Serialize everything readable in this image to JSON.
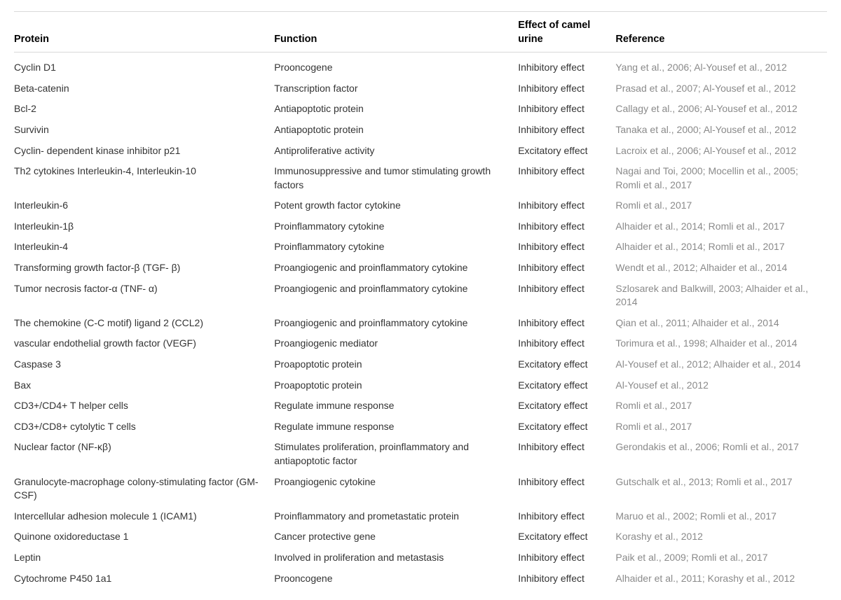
{
  "table": {
    "columns": [
      {
        "key": "protein",
        "label": "Protein"
      },
      {
        "key": "function",
        "label": "Function"
      },
      {
        "key": "effect",
        "label": "Effect of camel urine"
      },
      {
        "key": "reference",
        "label": "Reference"
      }
    ],
    "column_widths_pct": [
      32,
      30,
      12,
      26
    ],
    "header_border_color": "#d9d9d9",
    "text_color": "#333333",
    "reference_color": "#8a8a8a",
    "background_color": "#ffffff",
    "font_size_pt": 11,
    "header_font_size_pt": 11,
    "header_font_weight": "bold",
    "rows": [
      {
        "protein": "Cyclin D1",
        "function": "Prooncogene",
        "effect": "Inhibitory effect",
        "reference": "Yang et al., 2006; Al-Yousef et al., 2012"
      },
      {
        "protein": "Beta-catenin",
        "function": "Transcription factor",
        "effect": "Inhibitory effect",
        "reference": "Prasad et al., 2007; Al-Yousef et al., 2012"
      },
      {
        "protein": "Bcl-2",
        "function": "Antiapoptotic protein",
        "effect": "Inhibitory effect",
        "reference": "Callagy et al., 2006; Al-Yousef et al., 2012"
      },
      {
        "protein": "Survivin",
        "function": "Antiapoptotic protein",
        "effect": "Inhibitory effect",
        "reference": "Tanaka et al., 2000; Al-Yousef et al., 2012"
      },
      {
        "protein": "Cyclin- dependent kinase inhibitor p21",
        "function": "Antiproliferative activity",
        "effect": "Excitatory effect",
        "reference": "Lacroix et al., 2006; Al-Yousef et al., 2012"
      },
      {
        "protein": "Th2 cytokines Interleukin-4, Interleukin-10",
        "function": "Immunosuppressive and tumor stimulating growth factors",
        "effect": "Inhibitory effect",
        "reference": "Nagai and Toi, 2000; Mocellin et al., 2005; Romli et al., 2017"
      },
      {
        "protein": "Interleukin-6",
        "function": "Potent growth factor cytokine",
        "effect": "Inhibitory effect",
        "reference": "Romli et al., 2017"
      },
      {
        "protein": "Interleukin-1β",
        "function": "Proinflammatory cytokine",
        "effect": "Inhibitory effect",
        "reference": "Alhaider et al., 2014; Romli et al., 2017"
      },
      {
        "protein": "Interleukin-4",
        "function": "Proinflammatory cytokine",
        "effect": "Inhibitory effect",
        "reference": "Alhaider et al., 2014; Romli et al., 2017"
      },
      {
        "protein": "Transforming growth factor-β (TGF- β)",
        "function": "Proangiogenic and proinflammatory cytokine",
        "effect": "Inhibitory effect",
        "reference": "Wendt et al., 2012; Alhaider et al., 2014"
      },
      {
        "protein": "Tumor necrosis factor-α (TNF- α)",
        "function": "Proangiogenic and proinflammatory cytokine",
        "effect": "Inhibitory effect",
        "reference": "Szlosarek and Balkwill, 2003; Alhaider et al., 2014"
      },
      {
        "protein": "The chemokine (C-C motif) ligand 2 (CCL2)",
        "function": "Proangiogenic and proinflammatory cytokine",
        "effect": "Inhibitory effect",
        "reference": "Qian et al., 2011; Alhaider et al., 2014"
      },
      {
        "protein": "vascular endothelial growth factor (VEGF)",
        "function": "Proangiogenic mediator",
        "effect": "Inhibitory effect",
        "reference": "Torimura et al., 1998; Alhaider et al., 2014"
      },
      {
        "protein": "Caspase 3",
        "function": "Proapoptotic protein",
        "effect": "Excitatory effect",
        "reference": "Al-Yousef et al., 2012; Alhaider et al., 2014"
      },
      {
        "protein": "Bax",
        "function": "Proapoptotic protein",
        "effect": "Excitatory effect",
        "reference": "Al-Yousef et al., 2012"
      },
      {
        "protein": "CD3+/CD4+ T helper cells",
        "function": "Regulate immune response",
        "effect": "Excitatory effect",
        "reference": "Romli et al., 2017"
      },
      {
        "protein": "CD3+/CD8+ cytolytic T cells",
        "function": "Regulate immune response",
        "effect": "Excitatory effect",
        "reference": "Romli et al., 2017"
      },
      {
        "protein": "Nuclear factor (NF-κβ)",
        "function": "Stimulates proliferation, proinflammatory and antiapoptotic factor",
        "effect": "Inhibitory effect",
        "reference": "Gerondakis et al., 2006; Romli et al., 2017"
      },
      {
        "protein": "Granulocyte-macrophage colony-stimulating factor (GM-CSF)",
        "function": "Proangiogenic cytokine",
        "effect": "Inhibitory effect",
        "reference": "Gutschalk et al., 2013; Romli et al., 2017"
      },
      {
        "protein": "Intercellular adhesion molecule 1 (ICAM1)",
        "function": "Proinflammatory and prometastatic protein",
        "effect": "Inhibitory effect",
        "reference": "Maruo et al., 2002; Romli et al., 2017"
      },
      {
        "protein": "Quinone oxidoreductase 1",
        "function": "Cancer protective gene",
        "effect": "Excitatory effect",
        "reference": "Korashy et al., 2012"
      },
      {
        "protein": "Leptin",
        "function": "Involved in proliferation and metastasis",
        "effect": "Inhibitory effect",
        "reference": "Paik et al., 2009; Romli et al., 2017"
      },
      {
        "protein": "Cytochrome P450 1a1",
        "function": "Prooncogene",
        "effect": "Inhibitory effect",
        "reference": "Alhaider et al., 2011; Korashy et al., 2012"
      }
    ]
  }
}
